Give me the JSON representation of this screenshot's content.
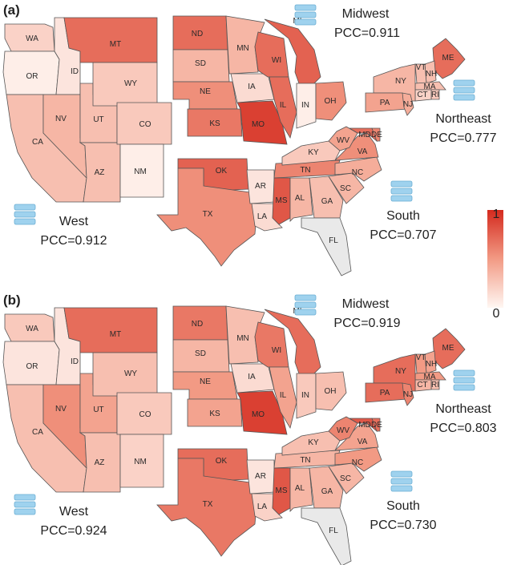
{
  "colorbar": {
    "max_label": "1",
    "min_label": "0"
  },
  "panels": [
    {
      "label": "(a)",
      "regions": [
        {
          "name": "West",
          "pcc": "PCC=0.912"
        },
        {
          "name": "Midwest",
          "pcc": "PCC=0.911"
        },
        {
          "name": "Northeast",
          "pcc": "PCC=0.777"
        },
        {
          "name": "South",
          "pcc": "PCC=0.707"
        }
      ],
      "states": {
        "WA": 0.2,
        "OR": 0.05,
        "CA": 0.3,
        "ID": 0.1,
        "NV": 0.35,
        "UT": 0.3,
        "AZ": 0.3,
        "MT": 0.7,
        "WY": 0.25,
        "CO": 0.25,
        "NM": 0.05,
        "ND": 0.7,
        "SD": 0.35,
        "NE": 0.55,
        "KS": 0.65,
        "MN": 0.35,
        "IA": 0.15,
        "MO": 0.9,
        "WI": 0.7,
        "IL": 0.7,
        "MI": 0.75,
        "IN": 0.05,
        "OH": 0.55,
        "ME": 0.7,
        "NH": 0.3,
        "VT": 0.3,
        "MA": 0.3,
        "RI": 0.25,
        "CT": 0.2,
        "NY": 0.35,
        "PA": 0.45,
        "NJ": 0.4,
        "OK": 0.75,
        "TX": 0.55,
        "AR": 0.1,
        "LA": 0.15,
        "MS": 0.8,
        "AL": 0.35,
        "TN": 0.6,
        "KY": 0.25,
        "GA": 0.3,
        "FL": 0.0,
        "SC": 0.35,
        "NC": 0.4,
        "VA": 0.55,
        "WV": 0.45,
        "MD": 0.7,
        "DE": 0.6
      }
    },
    {
      "label": "(b)",
      "regions": [
        {
          "name": "West",
          "pcc": "PCC=0.924"
        },
        {
          "name": "Midwest",
          "pcc": "PCC=0.919"
        },
        {
          "name": "Northeast",
          "pcc": "PCC=0.803"
        },
        {
          "name": "South",
          "pcc": "PCC=0.730"
        }
      ],
      "states": {
        "WA": 0.25,
        "OR": 0.1,
        "CA": 0.3,
        "ID": 0.1,
        "NV": 0.55,
        "UT": 0.45,
        "AZ": 0.3,
        "MT": 0.7,
        "WY": 0.3,
        "CO": 0.25,
        "NM": 0.2,
        "ND": 0.65,
        "SD": 0.35,
        "NE": 0.5,
        "KS": 0.45,
        "MN": 0.3,
        "IA": 0.15,
        "MO": 0.9,
        "WI": 0.65,
        "IL": 0.45,
        "MI": 0.7,
        "IN": 0.25,
        "OH": 0.3,
        "ME": 0.7,
        "NH": 0.45,
        "VT": 0.5,
        "MA": 0.5,
        "RI": 0.3,
        "CT": 0.35,
        "NY": 0.7,
        "PA": 0.7,
        "NJ": 0.6,
        "OK": 0.7,
        "TX": 0.65,
        "AR": 0.1,
        "LA": 0.2,
        "MS": 0.8,
        "AL": 0.35,
        "TN": 0.35,
        "KY": 0.3,
        "GA": 0.35,
        "FL": 0.05,
        "SC": 0.35,
        "NC": 0.5,
        "VA": 0.45,
        "WV": 0.6,
        "MD": 0.8,
        "DE": 0.7
      }
    }
  ]
}
